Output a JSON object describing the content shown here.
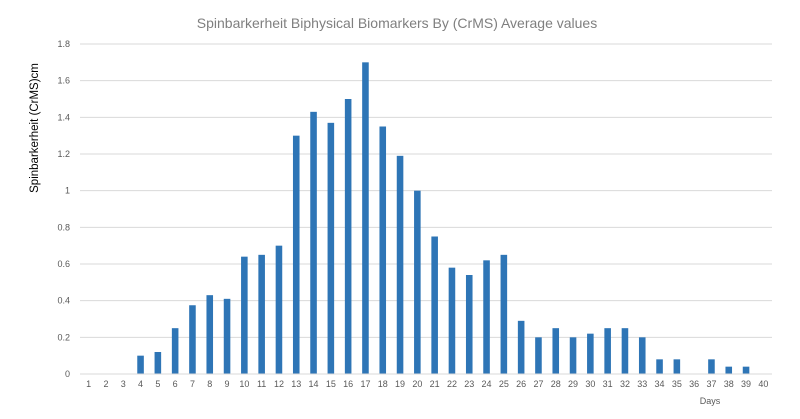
{
  "chart_data": {
    "type": "bar",
    "title": "Spinbarkerheit Biphysical Biomarkers By (CrMS) Average values",
    "xlabel": "Days",
    "ylabel": "Spinbarkerheit (CrMS)cm",
    "ylim": [
      0,
      1.8
    ],
    "yticks": [
      "0",
      "0.2",
      "0.4",
      "0.6",
      "0.8",
      "1",
      "1.2",
      "1.4",
      "1.6",
      "1.8"
    ],
    "ytick_values": [
      0,
      0.2,
      0.4,
      0.6,
      0.8,
      1.0,
      1.2,
      1.4,
      1.6,
      1.8
    ],
    "grid": true,
    "legend": "none",
    "bar_color": "#2e75b6",
    "categories": [
      "1",
      "2",
      "3",
      "4",
      "5",
      "6",
      "7",
      "8",
      "9",
      "10",
      "11",
      "12",
      "13",
      "14",
      "15",
      "16",
      "17",
      "18",
      "19",
      "20",
      "21",
      "22",
      "23",
      "24",
      "25",
      "26",
      "27",
      "28",
      "29",
      "30",
      "31",
      "32",
      "33",
      "34",
      "35",
      "36",
      "37",
      "38",
      "39",
      "40"
    ],
    "values": [
      0,
      0,
      0,
      0.1,
      0.12,
      0.25,
      0.375,
      0.43,
      0.41,
      0.64,
      0.65,
      0.7,
      1.3,
      1.43,
      1.37,
      1.5,
      1.7,
      1.35,
      1.19,
      1.0,
      0.75,
      0.58,
      0.54,
      0.62,
      0.65,
      0.29,
      0.2,
      0.25,
      0.2,
      0.22,
      0.25,
      0.25,
      0.2,
      0.08,
      0.08,
      0,
      0.08,
      0.04,
      0.04,
      0
    ]
  }
}
